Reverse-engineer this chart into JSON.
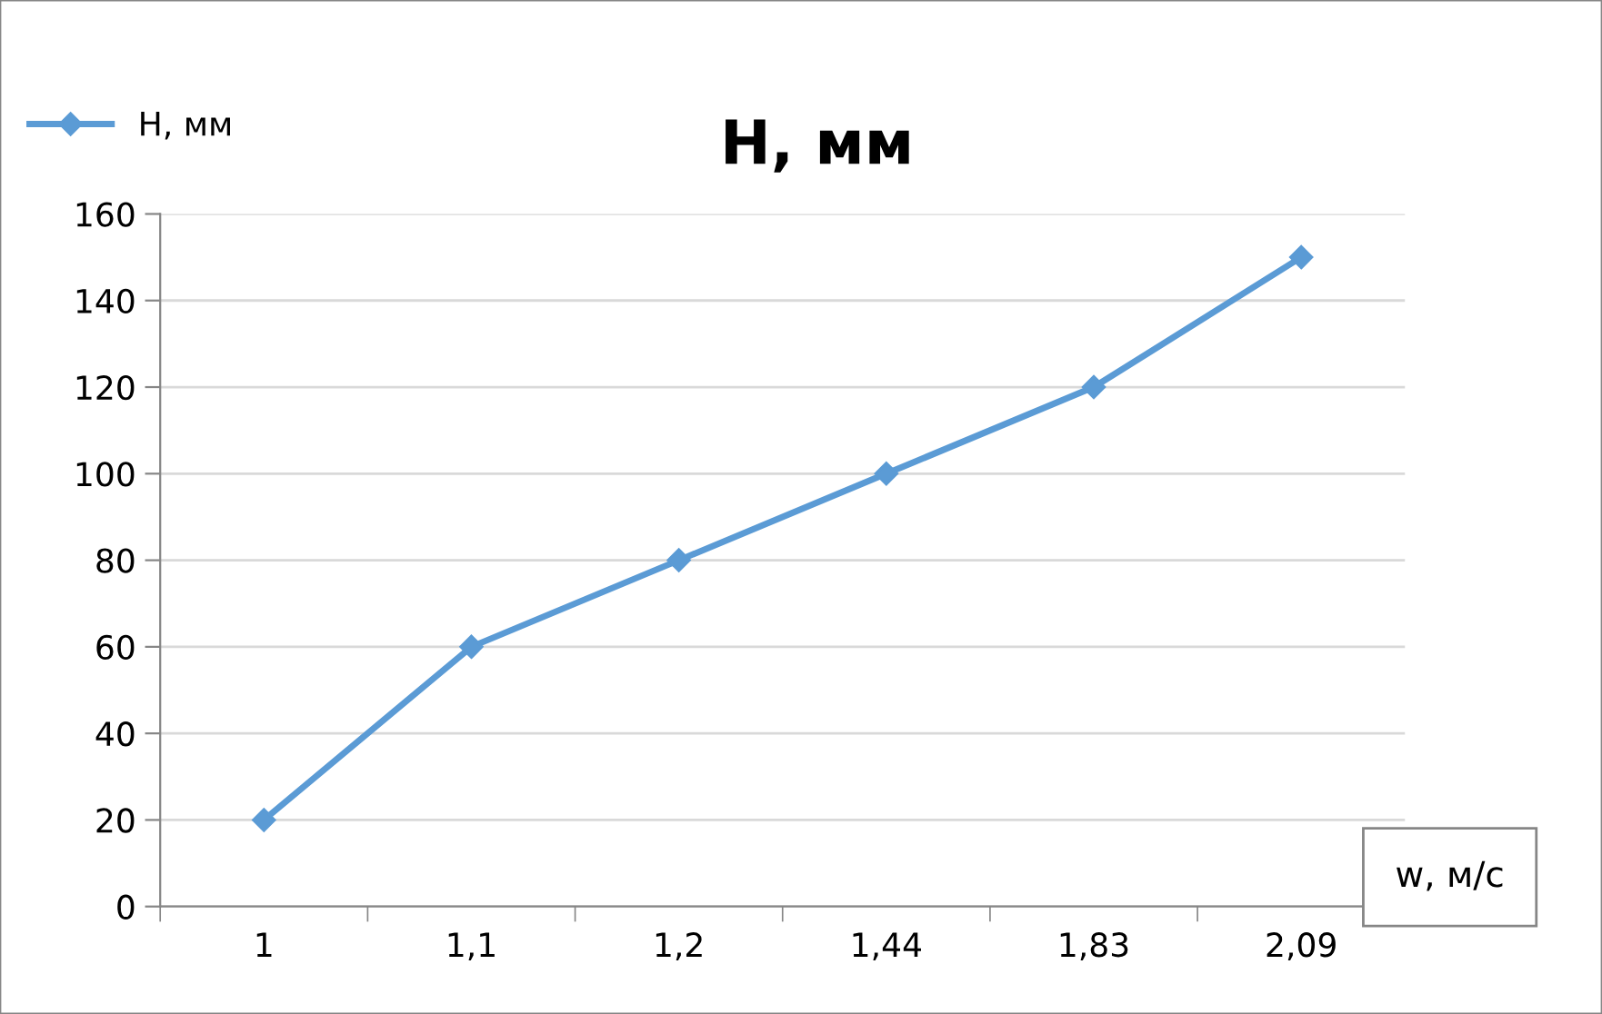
{
  "chart_data": {
    "type": "line",
    "title": "H, мм",
    "xlabel": "w, м/с",
    "categories": [
      "1",
      "1,1",
      "1,2",
      "1,44",
      "1,83",
      "2,09"
    ],
    "series": [
      {
        "name": "H, мм",
        "color": "#5b9bd5",
        "values": [
          20,
          60,
          80,
          100,
          120,
          150
        ]
      }
    ],
    "ylim": [
      0,
      160
    ],
    "yticks": [
      0,
      20,
      40,
      60,
      80,
      100,
      120,
      140,
      160
    ],
    "grid": "y",
    "legend": "top left",
    "marker": "diamond",
    "line_style": "solid"
  }
}
